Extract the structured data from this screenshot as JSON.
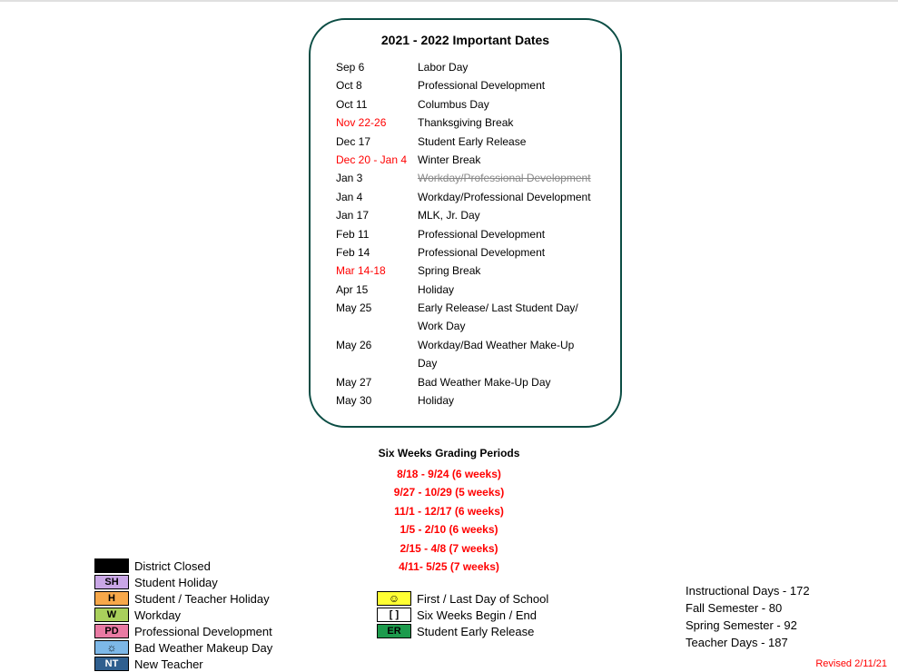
{
  "dates_box": {
    "title": "2021 - 2022 Important Dates",
    "border_color": "#0b4d44",
    "rows": [
      {
        "date": "Sep 6",
        "desc": "Labor Day",
        "red": false,
        "strike": false
      },
      {
        "date": "Oct 8",
        "desc": "Professional Development",
        "red": false,
        "strike": false
      },
      {
        "date": "Oct 11",
        "desc": "Columbus Day",
        "red": false,
        "strike": false
      },
      {
        "date": "Nov 22-26",
        "desc": "Thanksgiving Break",
        "red": true,
        "strike": false
      },
      {
        "date": "Dec 17",
        "desc": "Student Early Release",
        "red": false,
        "strike": false
      },
      {
        "date": "Dec 20 - Jan 4",
        "desc": "Winter Break",
        "red": true,
        "strike": false
      },
      {
        "date": "Jan 3",
        "desc": "Workday/Professional Development",
        "red": false,
        "strike": true
      },
      {
        "date": "Jan 4",
        "desc": "Workday/Professional Development",
        "red": false,
        "strike": false
      },
      {
        "date": "Jan 17",
        "desc": "MLK, Jr. Day",
        "red": false,
        "strike": false
      },
      {
        "date": "Feb 11",
        "desc": "Professional Development",
        "red": false,
        "strike": false
      },
      {
        "date": "Feb 14",
        "desc": "Professional Development",
        "red": false,
        "strike": false
      },
      {
        "date": "Mar 14-18",
        "desc": "Spring Break",
        "red": true,
        "strike": false
      },
      {
        "date": "Apr 15",
        "desc": "Holiday",
        "red": false,
        "strike": false
      },
      {
        "date": "May 25",
        "desc": "Early Release/ Last Student Day/ Work Day",
        "red": false,
        "strike": false
      },
      {
        "date": "May 26",
        "desc": "Workday/Bad Weather Make-Up Day",
        "red": false,
        "strike": false
      },
      {
        "date": "May 27",
        "desc": "Bad Weather Make-Up Day",
        "red": false,
        "strike": false
      },
      {
        "date": "May 30",
        "desc": "Holiday",
        "red": false,
        "strike": false
      }
    ]
  },
  "grading": {
    "title": "Six Weeks Grading Periods",
    "rows": [
      "8/18 - 9/24 (6 weeks)",
      "9/27 - 10/29 (5 weeks)",
      "11/1 - 12/17 (6 weeks)",
      "1/5 - 2/10 (6 weeks)",
      "2/15 - 4/8 (7 weeks)",
      "4/11- 5/25 (7 weeks)"
    ]
  },
  "legend_left": [
    {
      "code": "",
      "bg": "#000000",
      "fg": "#000000",
      "label": "District Closed"
    },
    {
      "code": "SH",
      "bg": "#c9a6e6",
      "fg": "#000000",
      "label": "Student Holiday"
    },
    {
      "code": "H",
      "bg": "#f7a84a",
      "fg": "#000000",
      "label": "Student / Teacher Holiday"
    },
    {
      "code": "W",
      "bg": "#a9d05c",
      "fg": "#000000",
      "label": "Workday"
    },
    {
      "code": "PD",
      "bg": "#e97aa3",
      "fg": "#000000",
      "label": "Professional Development"
    },
    {
      "code": "☼",
      "bg": "#7db8e8",
      "fg": "#000000",
      "label": "Bad Weather Makeup Day",
      "icon": true
    },
    {
      "code": "NT",
      "bg": "#2f5f8f",
      "fg": "#ffffff",
      "label": "New Teacher"
    }
  ],
  "legend_center": [
    {
      "code": "☺",
      "bg": "#ffff33",
      "fg": "#000000",
      "label": "First / Last Day of School",
      "icon": true
    },
    {
      "code": "[ ]",
      "bg": "#ffffff",
      "fg": "#000000",
      "label": "Six Weeks Begin / End"
    },
    {
      "code": "ER",
      "bg": "#1d9b4d",
      "fg": "#000000",
      "label": "Student Early Release"
    }
  ],
  "legend_right": [
    "Instructional Days - 172",
    "Fall Semester - 80",
    "Spring Semester - 92",
    "Teacher Days - 187"
  ],
  "revised": "Revised 2/11/21"
}
